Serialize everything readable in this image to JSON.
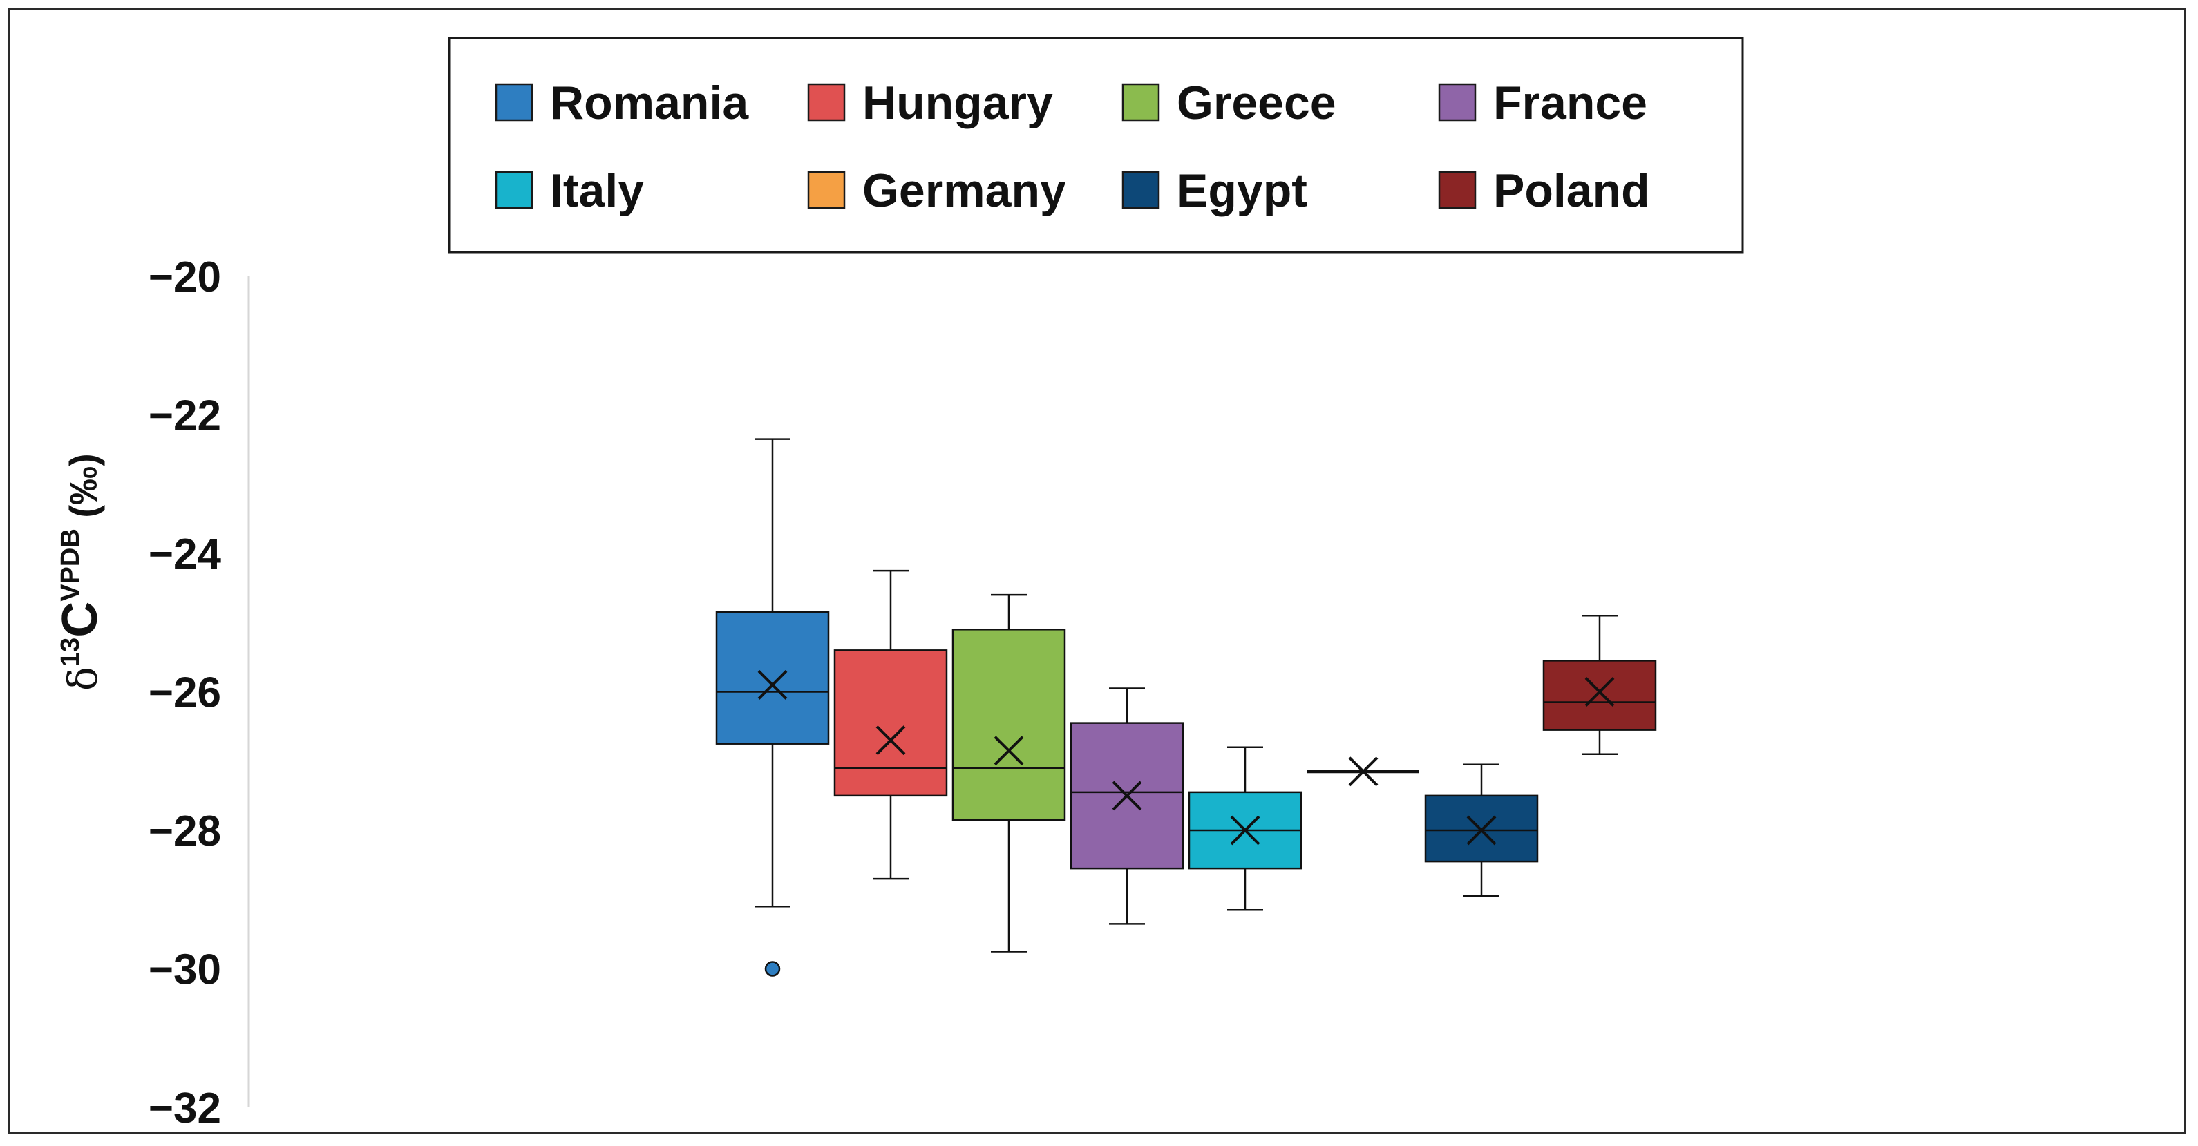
{
  "chart_data": {
    "type": "box",
    "title": "",
    "xlabel": "",
    "ylabel": "δ13CVPDB (‰)",
    "ylabel_parts": {
      "prefix": "δ",
      "sup": "13",
      "main": "C",
      "sup2": "VPDB",
      "unit": "(‰)"
    },
    "ylim": [
      -32,
      -20
    ],
    "yticks": [
      -20,
      -22,
      -24,
      -26,
      -28,
      -30,
      -32
    ],
    "ytick_labels": [
      "−20",
      "−22",
      "−24",
      "−26",
      "−28",
      "−30",
      "−32"
    ],
    "grid": false,
    "legend_position": "top",
    "series": [
      {
        "name": "Romania",
        "color": "#2E7EC1",
        "min": -29.1,
        "q1": -26.75,
        "median": -26.0,
        "q3": -24.85,
        "max": -22.35,
        "mean": -25.9,
        "outliers": [
          -30.0
        ]
      },
      {
        "name": "Hungary",
        "color": "#E05151",
        "min": -28.7,
        "q1": -27.5,
        "median": -27.1,
        "q3": -25.4,
        "max": -24.25,
        "mean": -26.7,
        "outliers": []
      },
      {
        "name": "Greece",
        "color": "#8BBB4E",
        "min": -29.75,
        "q1": -27.85,
        "median": -27.1,
        "q3": -25.1,
        "max": -24.6,
        "mean": -26.85,
        "outliers": []
      },
      {
        "name": "France",
        "color": "#8F65A8",
        "min": -29.35,
        "q1": -28.55,
        "median": -27.45,
        "q3": -26.45,
        "max": -25.95,
        "mean": -27.5,
        "outliers": []
      },
      {
        "name": "Italy",
        "color": "#18B3CC",
        "min": -29.15,
        "q1": -28.55,
        "median": -28.0,
        "q3": -27.45,
        "max": -26.8,
        "mean": -28.0,
        "outliers": []
      },
      {
        "name": "Germany",
        "color": "#F5A044",
        "min": -27.15,
        "q1": -27.15,
        "median": -27.15,
        "q3": -27.15,
        "max": -27.15,
        "mean": -27.15,
        "outliers": []
      },
      {
        "name": "Egypt",
        "color": "#0D4878",
        "min": -28.95,
        "q1": -28.45,
        "median": -28.0,
        "q3": -27.5,
        "max": -27.05,
        "mean": -28.0,
        "outliers": []
      },
      {
        "name": "Poland",
        "color": "#8B2525",
        "min": -26.9,
        "q1": -26.55,
        "median": -26.15,
        "q3": -25.55,
        "max": -24.9,
        "mean": -26.0,
        "outliers": []
      }
    ]
  }
}
